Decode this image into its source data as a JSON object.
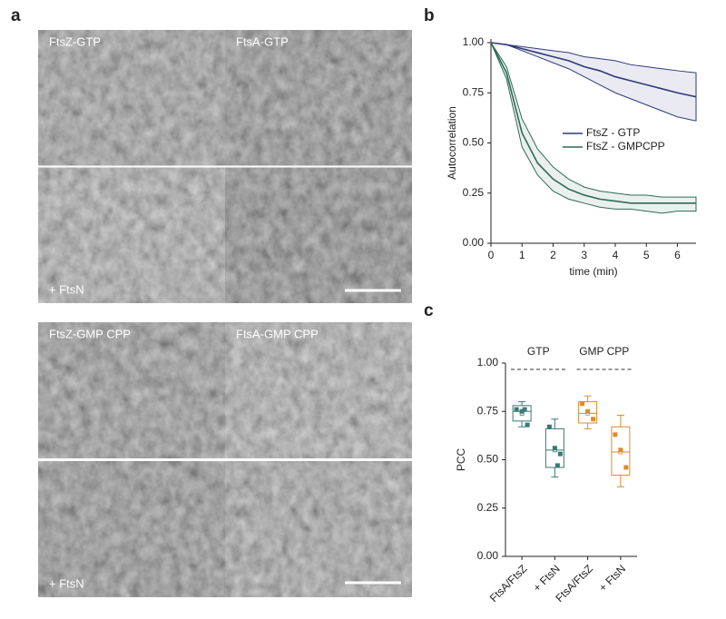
{
  "panel_labels": [
    "a",
    "b",
    "c"
  ],
  "panel_a": {
    "labels": [
      "FtsZ-GTP",
      "FtsA-GTP",
      "+ FtsN",
      "FtsZ-GMP CPP",
      "FtsA-GMP CPP",
      "+ FtsN"
    ]
  },
  "chart_data": [
    {
      "type": "line",
      "xlabel": "time (min)",
      "ylabel": "Autocorrelation",
      "x": [
        0,
        0.5,
        1,
        1.5,
        2,
        2.5,
        3,
        3.5,
        4,
        4.5,
        5,
        5.5,
        6,
        6.6
      ],
      "xlim": [
        0,
        6.6
      ],
      "xticks": [
        0,
        1,
        2,
        3,
        4,
        5,
        6
      ],
      "ylim": [
        0,
        1.0
      ],
      "yticks": [
        {
          "value": 0,
          "label": "0.00"
        },
        {
          "value": 0.25,
          "label": "0.25"
        },
        {
          "value": 0.5,
          "label": "0.50"
        },
        {
          "value": 0.75,
          "label": "0.75"
        },
        {
          "value": 1.0,
          "label": "1.00"
        }
      ],
      "series": [
        {
          "name": "FtsZ - GTP",
          "color": "#2e3a7c",
          "values": [
            1.0,
            0.99,
            0.97,
            0.95,
            0.93,
            0.91,
            0.88,
            0.86,
            0.83,
            0.81,
            0.79,
            0.77,
            0.75,
            0.73
          ],
          "upper": [
            1.0,
            0.99,
            0.98,
            0.97,
            0.96,
            0.95,
            0.93,
            0.92,
            0.91,
            0.89,
            0.88,
            0.87,
            0.86,
            0.85
          ],
          "lower": [
            1.0,
            0.99,
            0.96,
            0.93,
            0.9,
            0.87,
            0.83,
            0.79,
            0.75,
            0.72,
            0.69,
            0.66,
            0.63,
            0.61
          ]
        },
        {
          "name": "FtsZ - GMPCPP",
          "color": "#2f6b5a",
          "values": [
            1.0,
            0.85,
            0.55,
            0.4,
            0.32,
            0.27,
            0.24,
            0.22,
            0.21,
            0.2,
            0.2,
            0.2,
            0.2,
            0.2
          ],
          "upper": [
            1.0,
            0.88,
            0.62,
            0.47,
            0.38,
            0.32,
            0.28,
            0.26,
            0.25,
            0.24,
            0.24,
            0.23,
            0.23,
            0.23
          ],
          "lower": [
            1.0,
            0.82,
            0.48,
            0.34,
            0.26,
            0.22,
            0.2,
            0.18,
            0.17,
            0.17,
            0.16,
            0.15,
            0.16,
            0.16
          ]
        }
      ]
    },
    {
      "type": "box",
      "ylabel": "PCC",
      "groups": [
        "GTP",
        "GMP CPP"
      ],
      "categories": [
        "FtsA/FtsZ",
        "+ FtsN",
        "FtsA/FtsZ",
        "+ FtsN"
      ],
      "ylim": [
        0,
        1.0
      ],
      "yticks": [
        {
          "value": 0,
          "label": "0.00"
        },
        {
          "value": 0.25,
          "label": "0.25"
        },
        {
          "value": 0.5,
          "label": "0.50"
        },
        {
          "value": 0.75,
          "label": "0.75"
        },
        {
          "value": 1.0,
          "label": "1.00"
        }
      ],
      "boxes": [
        {
          "color": "#3a7a74",
          "whisker_low": 0.67,
          "q1": 0.7,
          "median": 0.75,
          "q3": 0.78,
          "whisker_high": 0.8,
          "mean": 0.74,
          "points": [
            0.76,
            0.75,
            0.68,
            0.76
          ]
        },
        {
          "color": "#3a7a74",
          "whisker_low": 0.41,
          "q1": 0.46,
          "median": 0.55,
          "q3": 0.66,
          "whisker_high": 0.71,
          "mean": 0.55,
          "points": [
            0.67,
            0.56,
            0.53,
            0.47
          ]
        },
        {
          "color": "#e08a2c",
          "whisker_low": 0.66,
          "q1": 0.69,
          "median": 0.74,
          "q3": 0.8,
          "whisker_high": 0.83,
          "mean": 0.74,
          "points": [
            0.79,
            0.75,
            0.71
          ]
        },
        {
          "color": "#e08a2c",
          "whisker_low": 0.36,
          "q1": 0.42,
          "median": 0.54,
          "q3": 0.67,
          "whisker_high": 0.73,
          "mean": 0.54,
          "points": [
            0.63,
            0.55,
            0.46
          ]
        }
      ]
    }
  ]
}
